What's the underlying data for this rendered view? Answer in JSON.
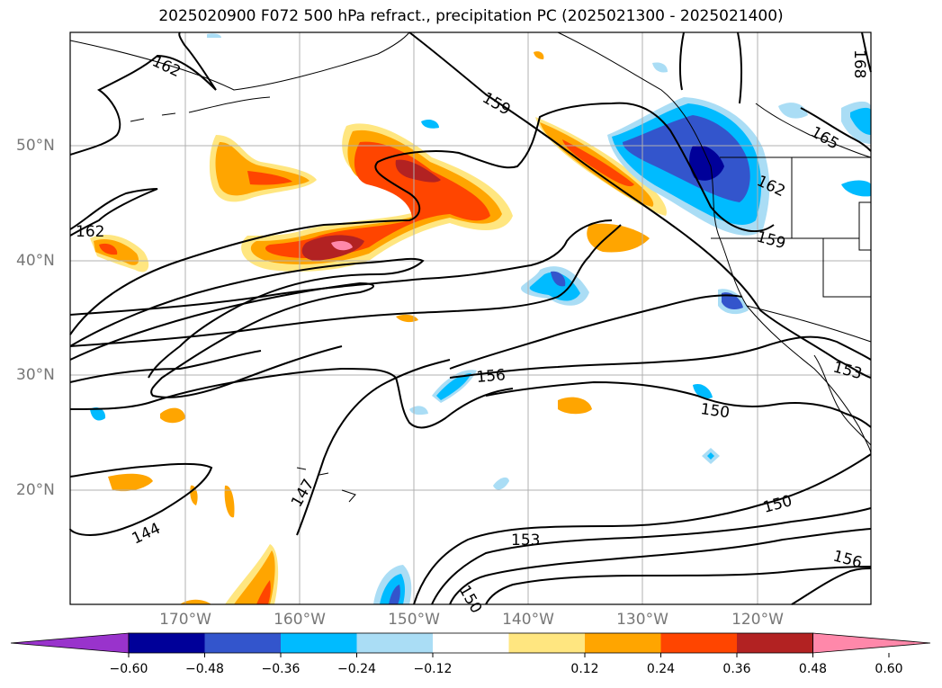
{
  "title": "2025020900 F072 500 hPa refract., precipitation PC (2025021300 - 2025021400)",
  "lat_labels": [
    "50°N",
    "40°N",
    "30°N",
    "20°N"
  ],
  "lon_labels": [
    "170°W",
    "160°W",
    "150°W",
    "140°W",
    "130°W",
    "120°W"
  ],
  "colorbar": {
    "ticks": [
      "−0.60",
      "−0.48",
      "−0.36",
      "−0.24",
      "−0.12",
      "0.12",
      "0.24",
      "0.36",
      "0.48",
      "0.60"
    ],
    "colors": [
      "#9933cc",
      "#000099",
      "#3355cc",
      "#00bbff",
      "#aaddf5",
      "#ffffff",
      "#ffe680",
      "#ffa500",
      "#ff4500",
      "#b22222",
      "#ff88aa"
    ]
  },
  "contour_labels": [
    "162",
    "159",
    "165",
    "162",
    "159",
    "162",
    "156",
    "153",
    "150",
    "150",
    "147",
    "144",
    "153",
    "156",
    "150",
    "168"
  ]
}
